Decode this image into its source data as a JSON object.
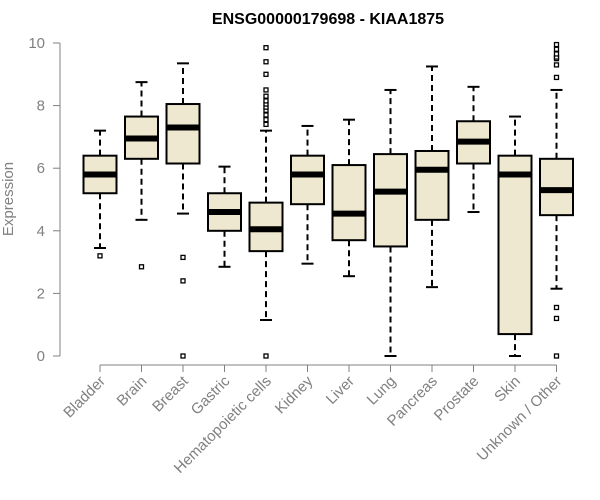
{
  "chart_data": {
    "type": "boxplot",
    "title": "ENSG00000179698 - KIAA1875",
    "xlabel": "",
    "ylabel": "Expression",
    "ylim": [
      0,
      10
    ],
    "yticks": [
      "0",
      "2",
      "4",
      "6",
      "8",
      "10"
    ],
    "categories": [
      "Bladder",
      "Brain",
      "Breast",
      "Gastric",
      "Hematopoietic cells",
      "Kidney",
      "Liver",
      "Lung",
      "Pancreas",
      "Prostate",
      "Skin",
      "Unknown / Other"
    ],
    "series": [
      {
        "name": "Bladder",
        "whisker_low": 3.45,
        "q1": 5.2,
        "median": 5.8,
        "q3": 6.4,
        "whisker_high": 7.2,
        "outliers": [
          3.2
        ]
      },
      {
        "name": "Brain",
        "whisker_low": 4.35,
        "q1": 6.3,
        "median": 6.95,
        "q3": 7.65,
        "whisker_high": 8.75,
        "outliers": [
          2.85
        ]
      },
      {
        "name": "Breast",
        "whisker_low": 4.55,
        "q1": 6.15,
        "median": 7.3,
        "q3": 8.05,
        "whisker_high": 9.35,
        "outliers": [
          3.15,
          2.4,
          0.0
        ]
      },
      {
        "name": "Gastric",
        "whisker_low": 2.85,
        "q1": 4.0,
        "median": 4.6,
        "q3": 5.2,
        "whisker_high": 6.05,
        "outliers": []
      },
      {
        "name": "Hematopoietic cells",
        "whisker_low": 1.15,
        "q1": 3.35,
        "median": 4.05,
        "q3": 4.9,
        "whisker_high": 7.2,
        "outliers": [
          0.0,
          7.4,
          7.55,
          7.7,
          7.85,
          7.95,
          8.05,
          8.15,
          8.3,
          8.5,
          9.0,
          9.4,
          9.85
        ]
      },
      {
        "name": "Kidney",
        "whisker_low": 2.95,
        "q1": 4.85,
        "median": 5.8,
        "q3": 6.4,
        "whisker_high": 7.35,
        "outliers": []
      },
      {
        "name": "Liver",
        "whisker_low": 2.55,
        "q1": 3.7,
        "median": 4.55,
        "q3": 6.1,
        "whisker_high": 7.55,
        "outliers": []
      },
      {
        "name": "Lung",
        "whisker_low": 0.0,
        "q1": 3.5,
        "median": 5.25,
        "q3": 6.45,
        "whisker_high": 8.5,
        "outliers": []
      },
      {
        "name": "Pancreas",
        "whisker_low": 2.2,
        "q1": 4.35,
        "median": 5.95,
        "q3": 6.55,
        "whisker_high": 9.25,
        "outliers": []
      },
      {
        "name": "Prostate",
        "whisker_low": 4.6,
        "q1": 6.15,
        "median": 6.85,
        "q3": 7.5,
        "whisker_high": 8.6,
        "outliers": []
      },
      {
        "name": "Skin",
        "whisker_low": 0.0,
        "q1": 0.7,
        "median": 5.8,
        "q3": 6.4,
        "whisker_high": 7.65,
        "outliers": []
      },
      {
        "name": "Unknown / Other",
        "whisker_low": 2.15,
        "q1": 4.5,
        "median": 5.3,
        "q3": 6.3,
        "whisker_high": 8.5,
        "outliers": [
          0.0,
          1.2,
          1.55,
          8.9,
          9.3,
          9.5,
          9.55,
          9.65,
          9.8,
          9.95
        ]
      }
    ],
    "colors": {
      "box_fill": "#EEE8D0",
      "stroke": "#000000",
      "axis": "#808080"
    }
  }
}
